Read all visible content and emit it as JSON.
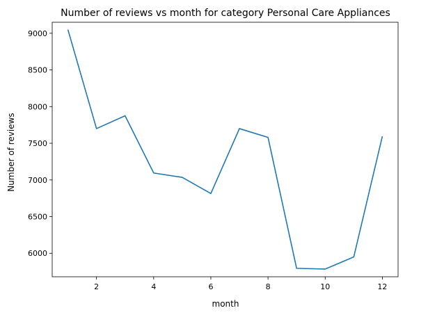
{
  "chart_data": {
    "type": "line",
    "title": "Number of reviews vs month for category Personal Care Appliances",
    "xlabel": "month",
    "ylabel": "Number of reviews",
    "xlim": [
      0.45,
      12.55
    ],
    "ylim": [
      5680,
      9150
    ],
    "xticks": [
      2,
      4,
      6,
      8,
      10,
      12
    ],
    "yticks": [
      6000,
      6500,
      7000,
      7500,
      8000,
      8500,
      9000
    ],
    "grid": false,
    "color": "#1f77b4",
    "x": [
      1,
      2,
      3,
      4,
      5,
      6,
      7,
      8,
      9,
      10,
      11,
      12
    ],
    "y": [
      9050,
      7700,
      7875,
      7095,
      7035,
      6815,
      7700,
      7580,
      5795,
      5785,
      5950,
      7595
    ]
  }
}
